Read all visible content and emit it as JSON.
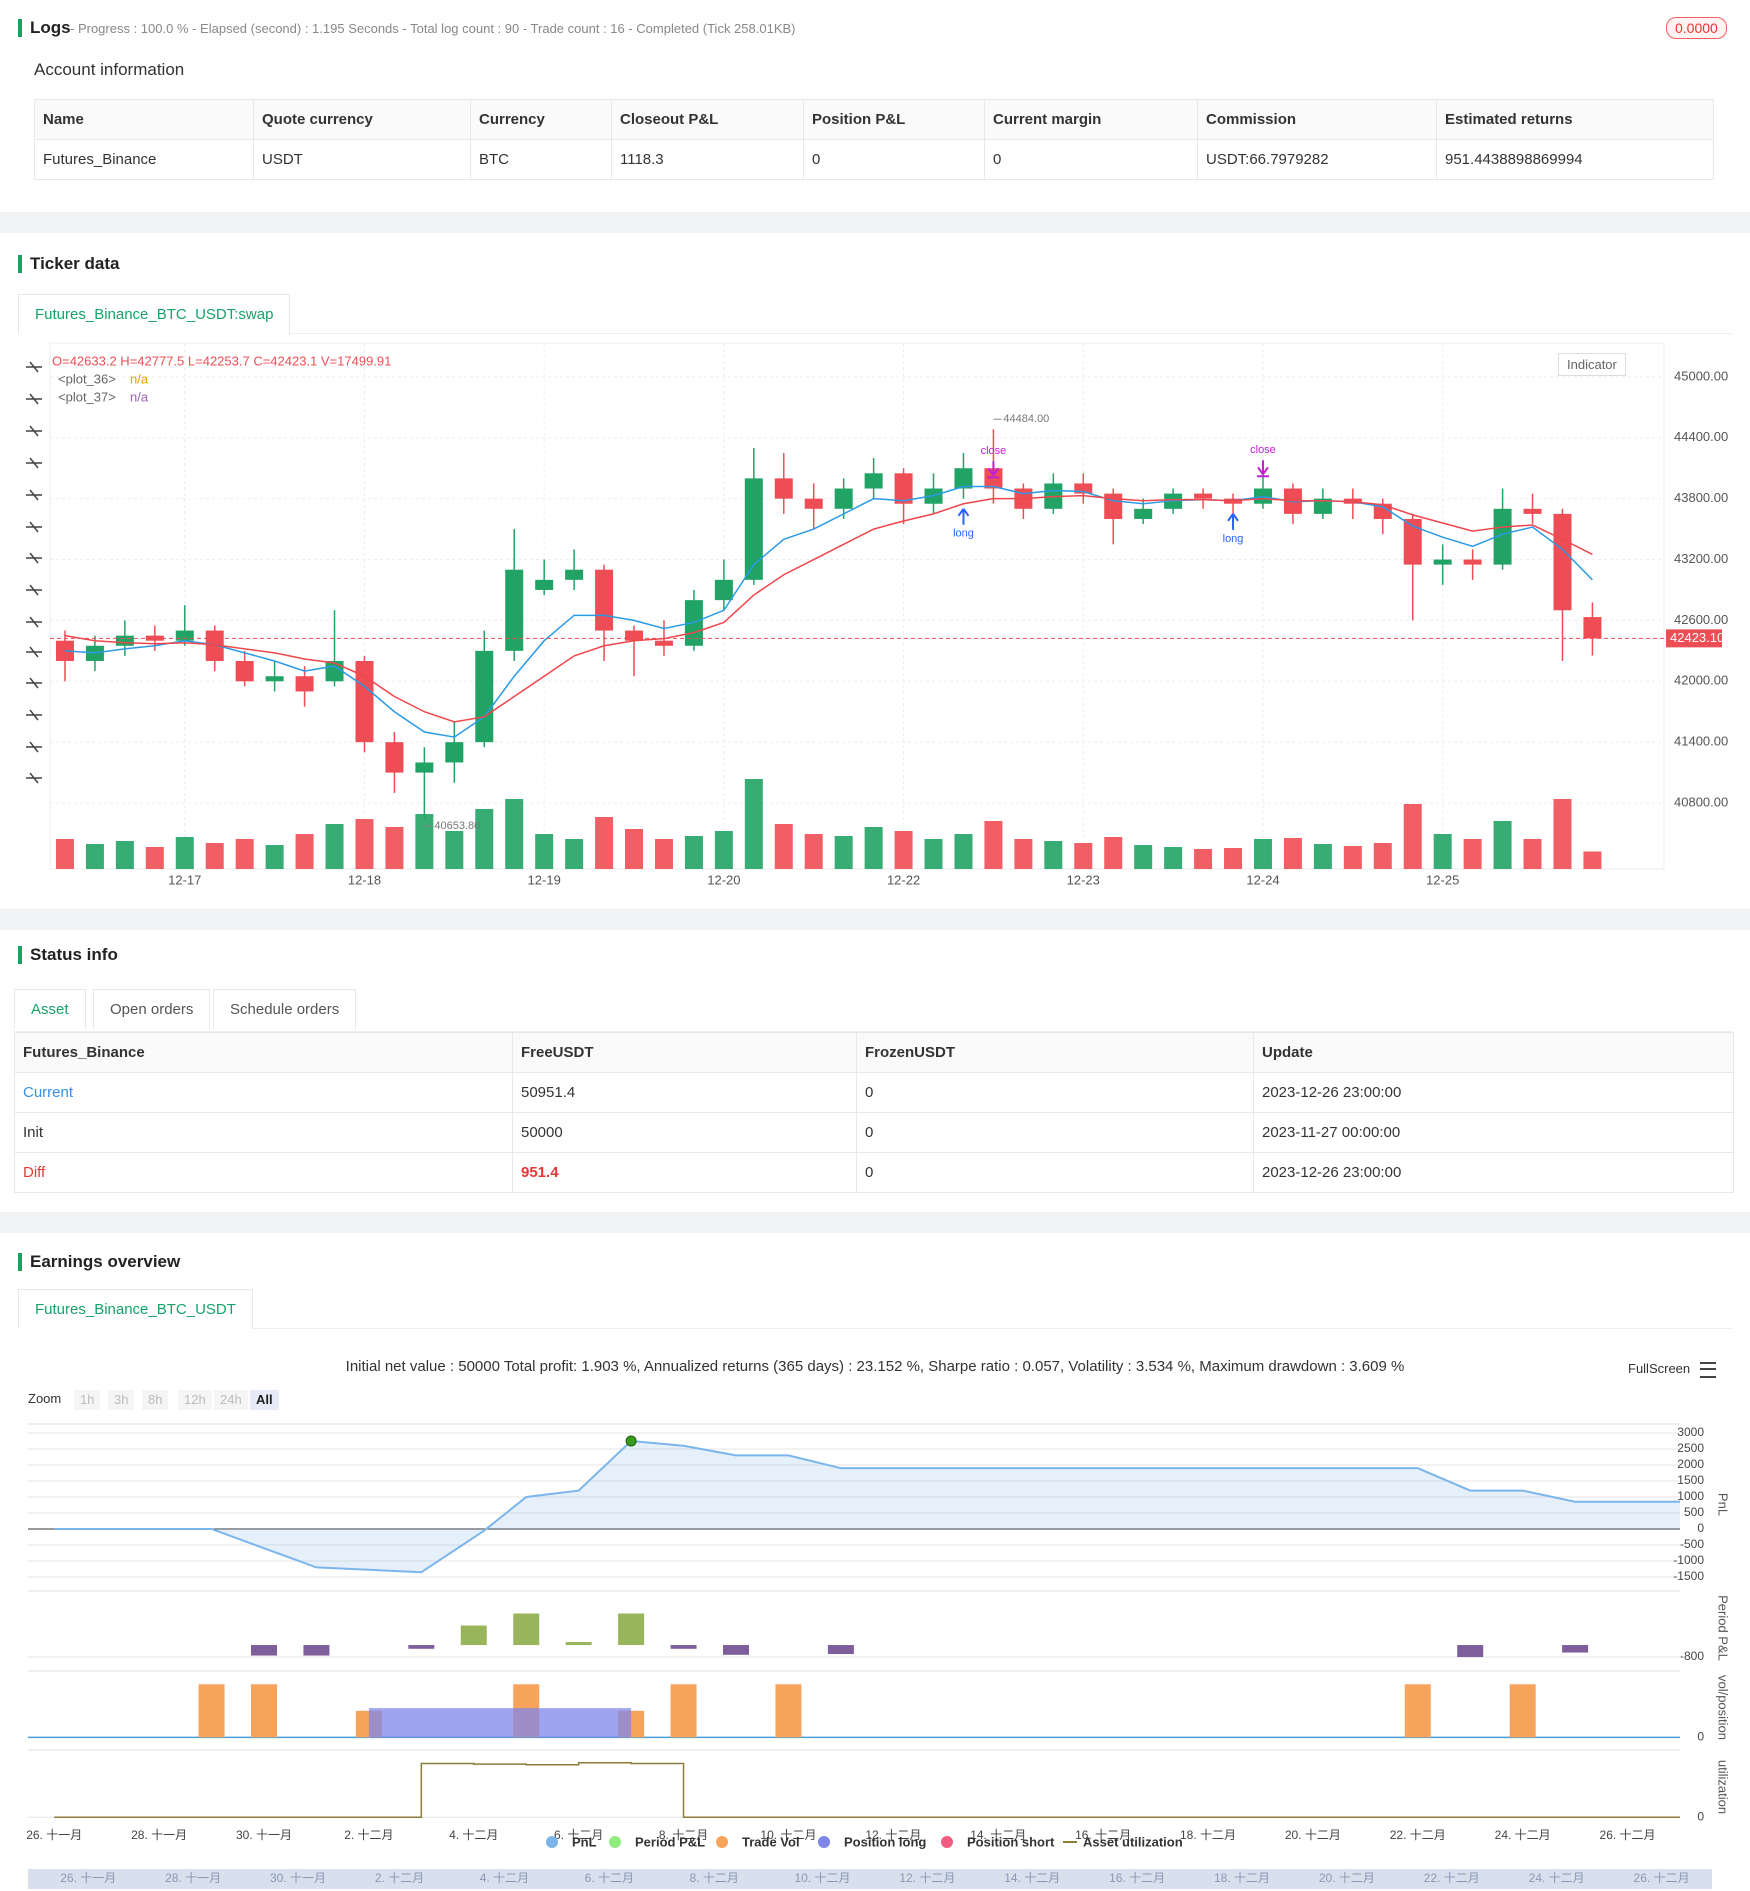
{
  "logs": {
    "title": "Logs",
    "status": "- Progress : 100.0 % - Elapsed (second) : 1.195  Seconds - Total log count : 90 - Trade count : 16 - Completed (Tick 258.01KB)",
    "badge": "0.0000"
  },
  "account": {
    "title": "Account information",
    "columns": [
      "Name",
      "Quote currency",
      "Currency",
      "Closeout P&L",
      "Position P&L",
      "Current margin",
      "Commission",
      "Estimated returns"
    ],
    "rows": [
      [
        "Futures_Binance",
        "USDT",
        "BTC",
        "1118.3",
        "0",
        "0",
        "USDT:66.7979282",
        "951.4438898869994"
      ]
    ]
  },
  "ticker": {
    "title": "Ticker data",
    "tab": "Futures_Binance_BTC_USDT:swap",
    "indicator_button": "Indicator",
    "chart_data": {
      "type": "candlestick",
      "ohlc_legend": "O=42633.2 H=42777.5 L=42253.7 C=42423.1 V=17499.91",
      "categories": [
        null,
        null,
        null,
        null,
        "12-17",
        null,
        null,
        null,
        null,
        null,
        "12-18",
        null,
        null,
        null,
        null,
        null,
        "12-19",
        null,
        null,
        null,
        null,
        null,
        "12-20",
        null,
        null,
        null,
        null,
        null,
        "12-22",
        null,
        null,
        null,
        null,
        null,
        "12-23",
        null,
        null,
        null,
        null,
        null,
        "12-24",
        null,
        null,
        null,
        null,
        null,
        "12-25",
        null,
        null,
        null,
        null,
        null
      ],
      "open": [
        42400,
        42200,
        42350,
        42450,
        42400,
        42500,
        42200,
        42000,
        42050,
        42000,
        42200,
        41400,
        41100,
        41200,
        41400,
        42300,
        42900,
        43000,
        43100,
        42500,
        42400,
        42350,
        42800,
        43000,
        44000,
        43800,
        43700,
        43900,
        44050,
        43750,
        43900,
        44100,
        43900,
        43700,
        43950,
        43850,
        43600,
        43700,
        43850,
        43800,
        43750,
        43900,
        43650,
        43800,
        43750,
        43600,
        43150,
        43200,
        43150,
        43700,
        43650,
        42633.2
      ],
      "high": [
        42500,
        42450,
        42600,
        42550,
        42750,
        42550,
        42300,
        42200,
        42150,
        42700,
        42250,
        41500,
        41350,
        41600,
        42500,
        43500,
        43200,
        43300,
        43150,
        42550,
        42600,
        42900,
        43200,
        44300,
        44250,
        43950,
        44000,
        44200,
        44100,
        44050,
        44250,
        44484,
        43950,
        44050,
        44050,
        43900,
        43800,
        43900,
        43900,
        43850,
        44050,
        43950,
        43900,
        43900,
        43800,
        43650,
        43350,
        43300,
        43900,
        43850,
        43700,
        42777.5
      ],
      "low": [
        42000,
        42100,
        42250,
        42300,
        42350,
        42100,
        41950,
        41900,
        41750,
        41950,
        41300,
        40900,
        40650,
        41000,
        41350,
        42200,
        42850,
        42900,
        42200,
        42050,
        42250,
        42300,
        42700,
        42950,
        43650,
        43500,
        43600,
        43800,
        43550,
        43650,
        43800,
        43750,
        43600,
        43650,
        43750,
        43350,
        43550,
        43650,
        43700,
        43650,
        43700,
        43550,
        43600,
        43600,
        43450,
        42600,
        42950,
        43000,
        43100,
        43550,
        42200,
        42253.7
      ],
      "close": [
        42200,
        42350,
        42450,
        42400,
        42500,
        42200,
        42000,
        42050,
        41900,
        42200,
        41400,
        41100,
        41200,
        41400,
        42300,
        43100,
        43000,
        43100,
        42500,
        42400,
        42350,
        42800,
        43000,
        44000,
        43800,
        43700,
        43900,
        44050,
        43750,
        43900,
        44100,
        43900,
        43700,
        43950,
        43850,
        43600,
        43700,
        43850,
        43800,
        43750,
        43900,
        43650,
        43800,
        43750,
        43600,
        43150,
        43200,
        43150,
        43700,
        43650,
        42700,
        42423.1
      ],
      "volume": [
        30000,
        25000,
        28000,
        22000,
        32000,
        26000,
        30000,
        24000,
        35000,
        45000,
        50000,
        42000,
        55000,
        38000,
        60000,
        70000,
        35000,
        30000,
        52000,
        40000,
        30000,
        33000,
        38000,
        90000,
        45000,
        35000,
        33000,
        42000,
        38000,
        30000,
        35000,
        48000,
        30000,
        28000,
        26000,
        32000,
        24000,
        22000,
        20000,
        21000,
        30000,
        31000,
        25000,
        23000,
        26000,
        65000,
        35000,
        30000,
        48000,
        30000,
        70000,
        17499.91
      ],
      "up_color": "#21a366",
      "down_color": "#ef4d55",
      "series": [
        {
          "name": "<plot_36>",
          "value_label": "n/a",
          "legend_value_color": "#f29d00",
          "color": "#2a9ae6",
          "values": [
            42300,
            42280,
            42320,
            42350,
            42400,
            42360,
            42280,
            42200,
            42100,
            42150,
            41950,
            41700,
            41500,
            41450,
            41650,
            42050,
            42400,
            42650,
            42650,
            42600,
            42520,
            42580,
            42700,
            43150,
            43400,
            43500,
            43650,
            43800,
            43780,
            43830,
            43920,
            43920,
            43850,
            43880,
            43870,
            43780,
            43750,
            43780,
            43790,
            43780,
            43820,
            43770,
            43780,
            43770,
            43720,
            43530,
            43420,
            43330,
            43450,
            43520,
            43300,
            43000
          ]
        },
        {
          "name": "<plot_37>",
          "value_label": "n/a",
          "legend_value_color": "#9c5fb5",
          "color": "#f0464b",
          "values": [
            42450,
            42400,
            42380,
            42370,
            42380,
            42360,
            42320,
            42280,
            42220,
            42180,
            42050,
            41850,
            41700,
            41600,
            41650,
            41850,
            42050,
            42250,
            42350,
            42400,
            42420,
            42480,
            42580,
            42850,
            43050,
            43200,
            43350,
            43500,
            43580,
            43650,
            43750,
            43800,
            43800,
            43820,
            43830,
            43800,
            43780,
            43790,
            43790,
            43780,
            43800,
            43780,
            43780,
            43770,
            43740,
            43640,
            43560,
            43480,
            43520,
            43540,
            43400,
            43250
          ]
        }
      ],
      "ylim": [
        40150,
        45275
      ],
      "yticks": [
        {
          "value": 40800,
          "label": "40800.00"
        },
        {
          "value": 41400,
          "label": "41400.00"
        },
        {
          "value": 42000,
          "label": "42000.00"
        },
        {
          "value": 42600,
          "label": "42600.00"
        },
        {
          "value": 43200,
          "label": "43200.00"
        },
        {
          "value": 43800,
          "label": "43800.00"
        },
        {
          "value": 44400,
          "label": "44400.00"
        },
        {
          "value": 45000,
          "label": "45000.00"
        }
      ],
      "last_price": {
        "value": 42423.1,
        "label": "42423.10"
      },
      "high_marker": {
        "x": 31,
        "value": 44484,
        "label": "44484.00"
      },
      "low_marker": {
        "x": 12,
        "value": 40653.8,
        "label": "40653.80"
      },
      "signals": [
        {
          "label": "long",
          "x": 30,
          "price": 43700
        },
        {
          "label": "close",
          "x": 31,
          "price": 44030
        },
        {
          "label": "long",
          "x": 39,
          "price": 43650
        },
        {
          "label": "close",
          "x": 40,
          "price": 44040
        }
      ],
      "grid": true
    }
  },
  "status": {
    "title": "Status info",
    "tabs": [
      "Asset",
      "Open orders",
      "Schedule orders"
    ],
    "columns": [
      "Futures_Binance",
      "FreeUSDT",
      "FrozenUSDT",
      "Update"
    ],
    "rows": [
      [
        "Current",
        "50951.4",
        "0",
        "2023-12-26 23:00:00"
      ],
      [
        "Init",
        "50000",
        "0",
        "2023-11-27 00:00:00"
      ],
      [
        "Diff",
        "951.4",
        "0",
        "2023-12-26 23:00:00"
      ]
    ]
  },
  "earnings": {
    "title": "Earnings overview",
    "tab": "Futures_Binance_BTC_USDT",
    "summary": "Initial net value : 50000 Total profit: 1.903 %, Annualized returns (365 days) : 23.152 %, Sharpe ratio : 0.057, Volatility : 3.534 %, Maximum drawdown : 3.609 %",
    "zoom_label": "Zoom",
    "zoom_buttons": [
      "1h",
      "3h",
      "8h",
      "12h",
      "24h",
      "All"
    ],
    "fullscreen": "FullScreen",
    "chart_data": {
      "type": "combo",
      "xlim": [
        -0.5,
        31
      ],
      "xticks": [
        {
          "value": 0,
          "label": "26. 十一月"
        },
        {
          "value": 2,
          "label": "28. 十一月"
        },
        {
          "value": 4,
          "label": "30. 十一月"
        },
        {
          "value": 6,
          "label": "2. 十二月"
        },
        {
          "value": 8,
          "label": "4. 十二月"
        },
        {
          "value": 10,
          "label": "6. 十二月"
        },
        {
          "value": 12,
          "label": "8. 十二月"
        },
        {
          "value": 14,
          "label": "10. 十二月"
        },
        {
          "value": 16,
          "label": "12. 十二月"
        },
        {
          "value": 18,
          "label": "14. 十二月"
        },
        {
          "value": 20,
          "label": "16. 十二月"
        },
        {
          "value": 22,
          "label": "18. 十二月"
        },
        {
          "value": 24,
          "label": "20. 十二月"
        },
        {
          "value": 26,
          "label": "22. 十二月"
        },
        {
          "value": 28,
          "label": "24. 十二月"
        },
        {
          "value": 30,
          "label": "26. 十二月"
        }
      ],
      "panels": [
        {
          "axis_title": "PnL",
          "ylim": [
            -1750,
            3280
          ],
          "yticks": [
            -1500,
            -1000,
            -500,
            0,
            500,
            1000,
            1500,
            2000,
            2500,
            3000
          ]
        },
        {
          "axis_title": "Period P&L",
          "ylim": [
            -1330,
            3600
          ],
          "yticks": [
            -800
          ]
        },
        {
          "axis_title": "vol/position",
          "ylim": [
            -5000,
            50000
          ],
          "yticks": [
            0
          ]
        },
        {
          "axis_title": "utilization",
          "ylim": [
            -0.1,
            1
          ],
          "yticks": [
            0
          ]
        }
      ],
      "series": [
        {
          "name": "PnL",
          "color": "#7cb5ec",
          "panel": 0,
          "kind": "area",
          "x": [
            0,
            3,
            5,
            7,
            8.2,
            9,
            10,
            11,
            12,
            13,
            14,
            15,
            26,
            27,
            28,
            29,
            31
          ],
          "values": [
            0,
            0,
            -1200,
            -1350,
            -50,
            1000,
            1200,
            2750,
            2600,
            2300,
            2300,
            1900,
            1900,
            1200,
            1200,
            850,
            850
          ]
        },
        {
          "name": "Period P&L",
          "color": "#90ed7d",
          "bar_color": "#98b55b",
          "negative_color": "#7e5e9b",
          "panel": 1,
          "kind": "bar",
          "x": [
            4,
            5,
            7,
            8,
            9,
            10,
            11,
            12,
            13,
            15,
            27,
            29
          ],
          "values": [
            -700,
            -700,
            -250,
            1300,
            2100,
            200,
            2100,
            -250,
            -650,
            -600,
            -800,
            -500
          ]
        },
        {
          "name": "Trade Vol",
          "color": "#f7a35c",
          "panel": 2,
          "kind": "bar",
          "x": [
            3,
            4,
            6,
            9,
            11,
            12,
            14,
            26,
            28
          ],
          "values": [
            40000,
            40000,
            20000,
            40000,
            20000,
            40000,
            40000,
            40000,
            40000
          ]
        },
        {
          "name": "Position long",
          "color": "#8085e9",
          "panel": 2,
          "kind": "span",
          "x": [
            6
          ],
          "x_end": [
            11
          ],
          "values": [
            22000
          ]
        },
        {
          "name": "Position short",
          "color": "#f15c80",
          "panel": 2,
          "kind": "bar",
          "x": [],
          "values": []
        },
        {
          "name": "Asset utilization",
          "color": "#8d7b3a",
          "panel": 3,
          "kind": "step",
          "x": [
            0,
            7,
            8,
            9,
            10,
            11,
            12,
            31
          ],
          "values": [
            0,
            0.8,
            0.79,
            0.78,
            0.81,
            0.8,
            0,
            0
          ]
        }
      ]
    }
  }
}
